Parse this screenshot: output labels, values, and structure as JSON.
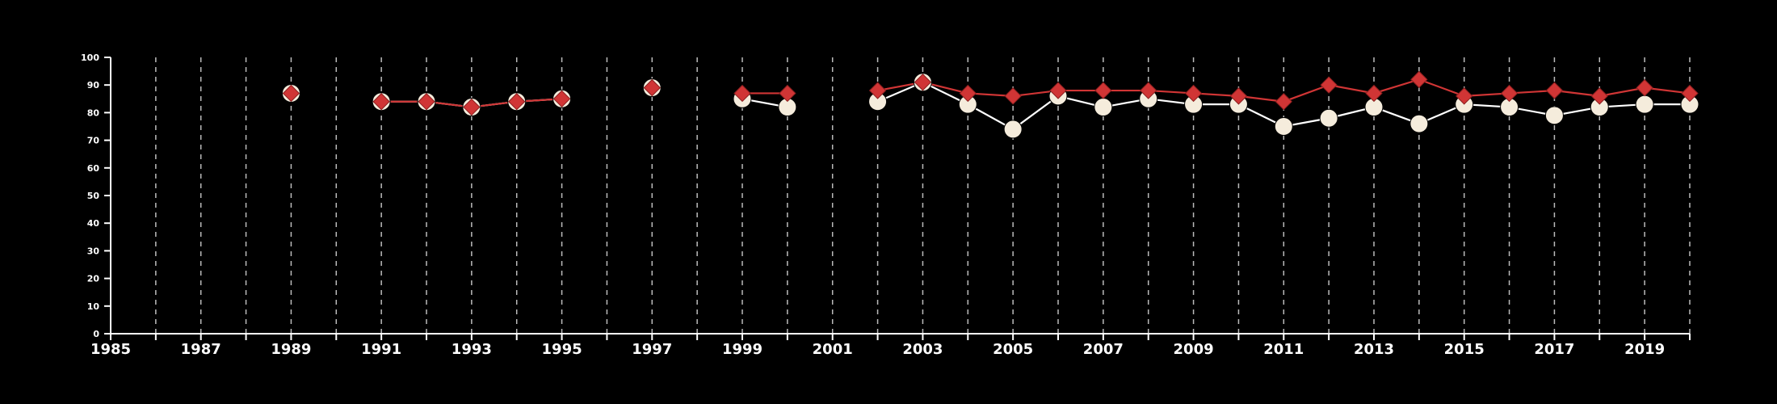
{
  "chart_data": {
    "type": "line",
    "title": "",
    "xlabel": "",
    "ylabel": "",
    "xlim": [
      1985,
      2020
    ],
    "ylim": [
      0,
      100
    ],
    "x_ticks": [
      "1985",
      "1987",
      "1989",
      "1991",
      "1993",
      "1995",
      "1997",
      "1999",
      "2001",
      "2003",
      "2005",
      "2007",
      "2009",
      "2011",
      "2013",
      "2015",
      "2017",
      "2019"
    ],
    "y_ticks": [
      "0",
      "10",
      "20",
      "30",
      "40",
      "50",
      "60",
      "70",
      "80",
      "90",
      "100"
    ],
    "grid": "vertical dashed lines at every year",
    "background": "#000000",
    "series": [
      {
        "marker": "circle",
        "color": "#f5ecdc",
        "line_color": "#ffffff",
        "points": [
          [
            1989,
            87
          ],
          [
            1991,
            84
          ],
          [
            1992,
            84
          ],
          [
            1993,
            82
          ],
          [
            1994,
            84
          ],
          [
            1995,
            85
          ],
          [
            1997,
            89
          ],
          [
            1999,
            85
          ],
          [
            2000,
            82
          ],
          [
            2002,
            84
          ],
          [
            2003,
            91
          ],
          [
            2004,
            83
          ],
          [
            2005,
            74
          ],
          [
            2006,
            86
          ],
          [
            2007,
            82
          ],
          [
            2008,
            85
          ],
          [
            2009,
            83
          ],
          [
            2010,
            83
          ],
          [
            2011,
            75
          ],
          [
            2012,
            78
          ],
          [
            2013,
            82
          ],
          [
            2014,
            76
          ],
          [
            2015,
            83
          ],
          [
            2016,
            82
          ],
          [
            2017,
            79
          ],
          [
            2018,
            82
          ],
          [
            2019,
            83
          ],
          [
            2020,
            83
          ]
        ]
      },
      {
        "marker": "diamond",
        "color": "#d03535",
        "line_color": "#d03535",
        "points": [
          [
            1989,
            87
          ],
          [
            1991,
            84
          ],
          [
            1992,
            84
          ],
          [
            1993,
            82
          ],
          [
            1994,
            84
          ],
          [
            1995,
            85
          ],
          [
            1997,
            89
          ],
          [
            1999,
            87
          ],
          [
            2000,
            87
          ],
          [
            2002,
            88
          ],
          [
            2003,
            91
          ],
          [
            2004,
            87
          ],
          [
            2005,
            86
          ],
          [
            2006,
            88
          ],
          [
            2007,
            88
          ],
          [
            2008,
            88
          ],
          [
            2009,
            87
          ],
          [
            2010,
            86
          ],
          [
            2011,
            84
          ],
          [
            2012,
            90
          ],
          [
            2013,
            87
          ],
          [
            2014,
            92
          ],
          [
            2015,
            86
          ],
          [
            2016,
            87
          ],
          [
            2017,
            88
          ],
          [
            2018,
            86
          ],
          [
            2019,
            89
          ],
          [
            2020,
            87
          ]
        ]
      }
    ]
  }
}
